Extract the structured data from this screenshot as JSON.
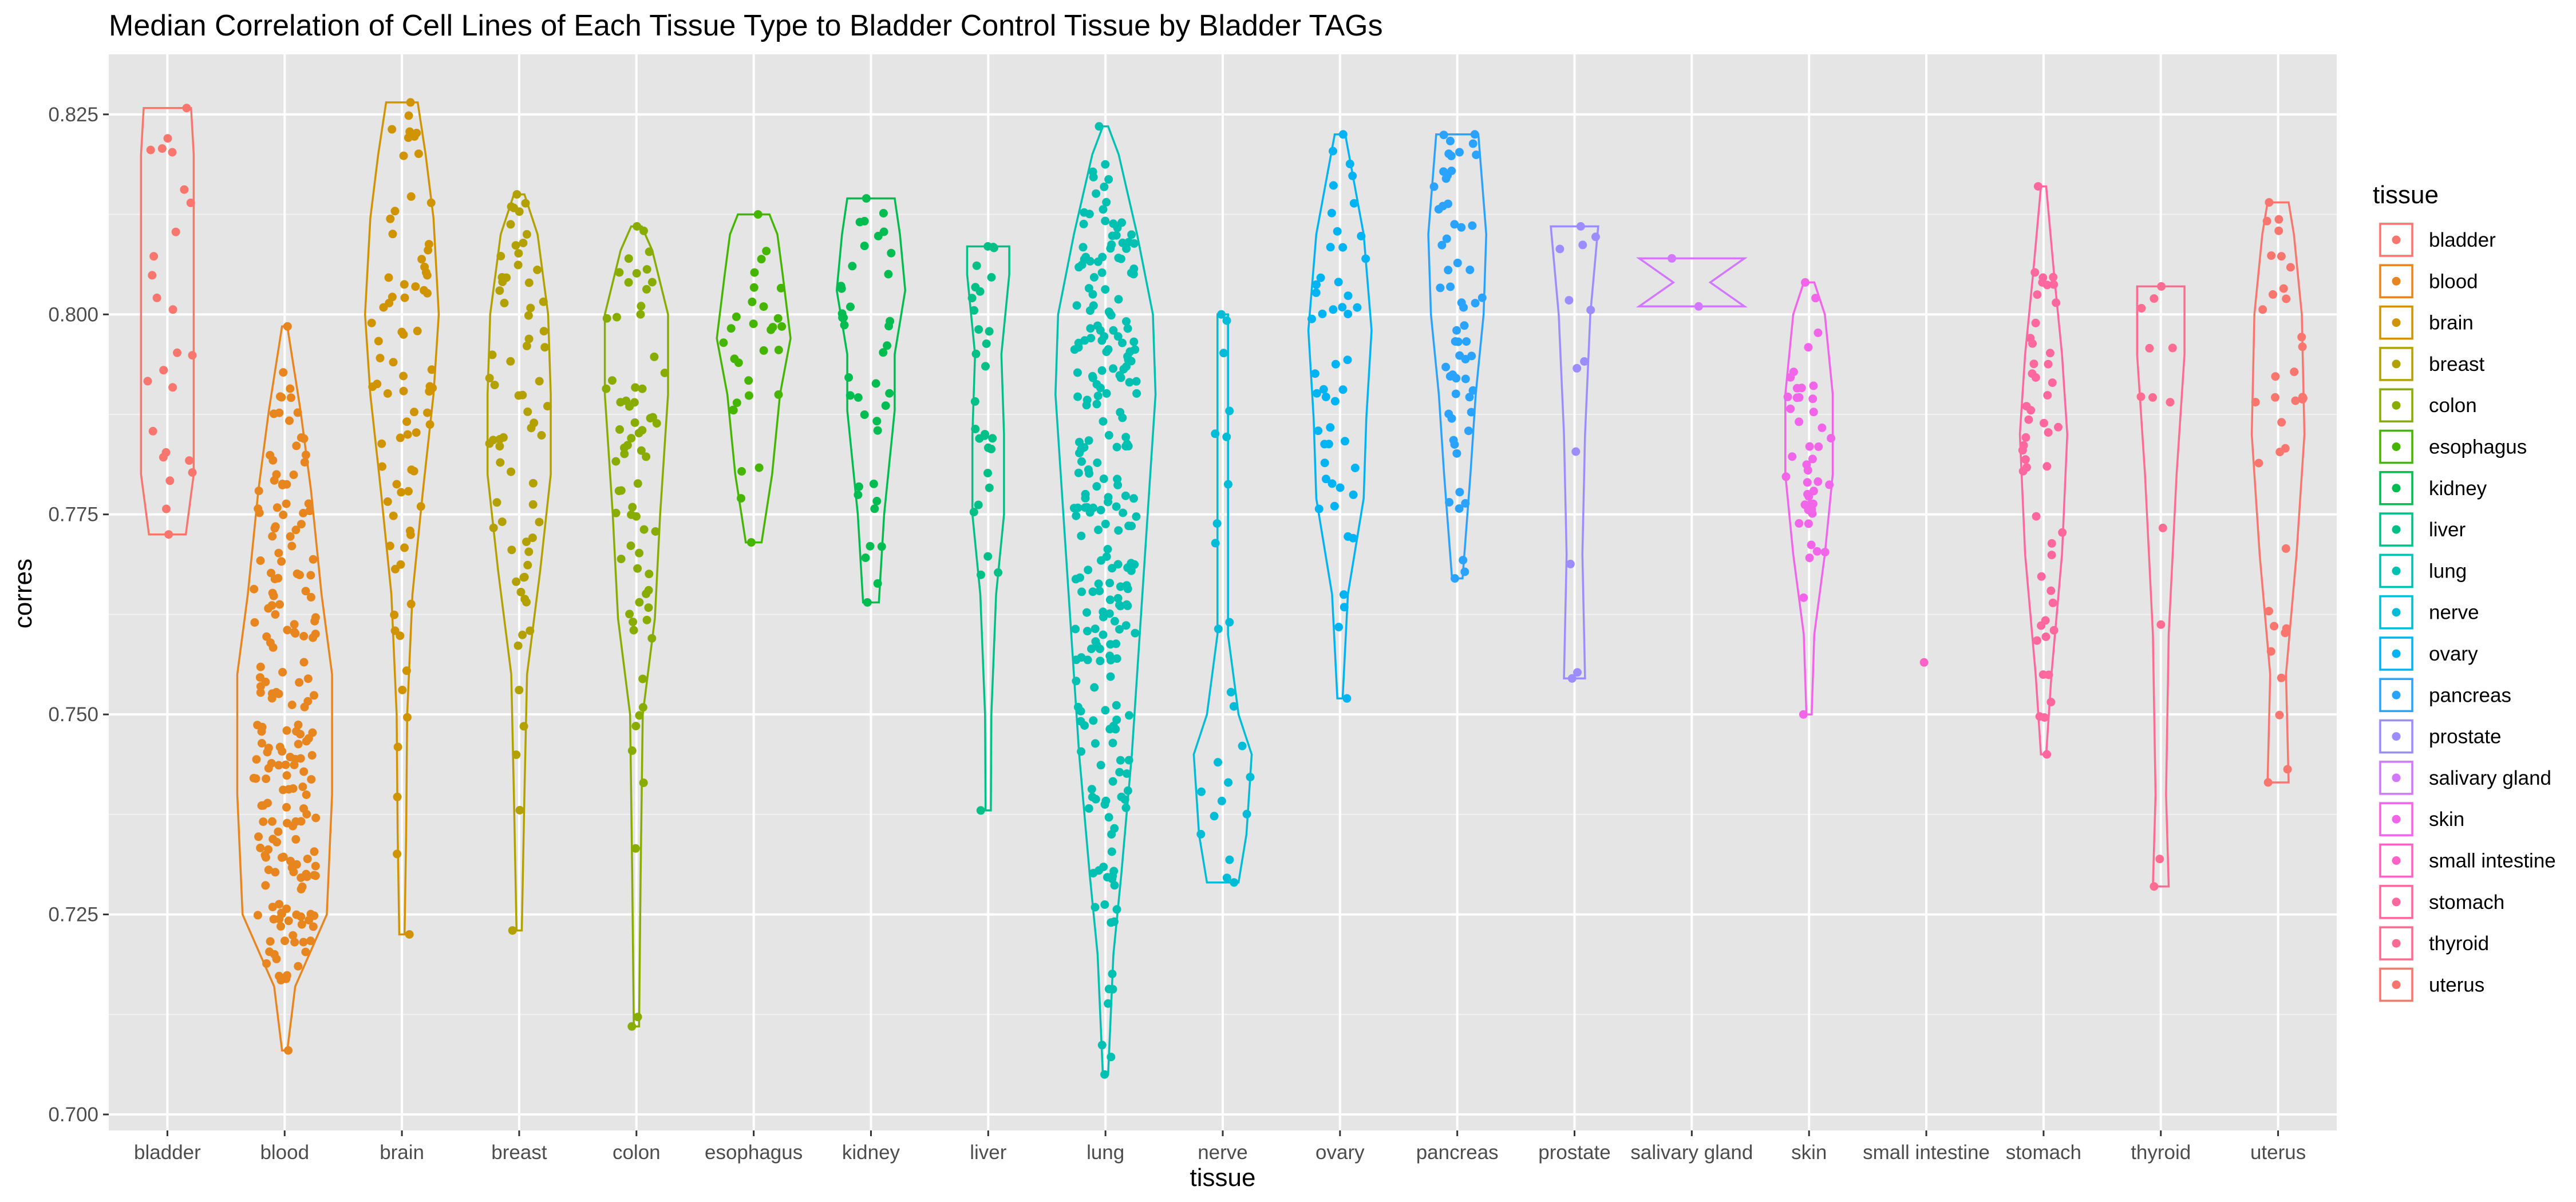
{
  "chart_data": {
    "type": "violin",
    "title": "Median Correlation of Cell Lines of Each Tissue Type to Bladder Control Tissue by Bladder TAGs",
    "xlabel": "tissue",
    "ylabel": "corres",
    "ylim": [
      0.698,
      0.8325
    ],
    "yticks": [
      0.7,
      0.725,
      0.75,
      0.775,
      0.8,
      0.825
    ],
    "ytick_labels": [
      "0.700",
      "0.725",
      "0.750",
      "0.775",
      "0.800",
      "0.825"
    ],
    "grid": true,
    "background": "#e5e5e5",
    "legend": {
      "title": "tissue",
      "position": "right"
    },
    "categories": [
      "bladder",
      "blood",
      "brain",
      "breast",
      "colon",
      "esophagus",
      "kidney",
      "liver",
      "lung",
      "nerve",
      "ovary",
      "pancreas",
      "prostate",
      "salivary gland",
      "skin",
      "small intestine",
      "stomach",
      "thyroid",
      "uterus"
    ],
    "colors": [
      "#f8766d",
      "#e7851e",
      "#d09400",
      "#b2a100",
      "#89ac00",
      "#45b500",
      "#00bc51",
      "#00c087",
      "#00c0b2",
      "#00bcd6",
      "#00b3f2",
      "#29a3ff",
      "#9c8dff",
      "#d277ff",
      "#f166e8",
      "#ff61c7",
      "#ff689e",
      "#ff6c91",
      "#f8766d"
    ],
    "series": [
      {
        "name": "bladder",
        "min": 0.7725,
        "max": 0.8258,
        "n": 25,
        "profile": [
          [
            0.7725,
            0.35
          ],
          [
            0.78,
            0.5
          ],
          [
            0.8,
            0.5
          ],
          [
            0.82,
            0.5
          ],
          [
            0.8258,
            0.45
          ]
        ]
      },
      {
        "name": "blood",
        "min": 0.708,
        "max": 0.7985,
        "n": 200,
        "profile": [
          [
            0.708,
            0.05
          ],
          [
            0.716,
            0.2
          ],
          [
            0.725,
            0.8
          ],
          [
            0.74,
            0.9
          ],
          [
            0.755,
            0.9
          ],
          [
            0.765,
            0.7
          ],
          [
            0.778,
            0.5
          ],
          [
            0.788,
            0.3
          ],
          [
            0.7985,
            0.05
          ]
        ]
      },
      {
        "name": "brain",
        "min": 0.7225,
        "max": 0.8265,
        "n": 80,
        "profile": [
          [
            0.7225,
            0.05
          ],
          [
            0.735,
            0.08
          ],
          [
            0.75,
            0.1
          ],
          [
            0.765,
            0.2
          ],
          [
            0.778,
            0.4
          ],
          [
            0.79,
            0.6
          ],
          [
            0.8,
            0.7
          ],
          [
            0.812,
            0.6
          ],
          [
            0.82,
            0.45
          ],
          [
            0.8265,
            0.3
          ]
        ]
      },
      {
        "name": "breast",
        "min": 0.723,
        "max": 0.815,
        "n": 70,
        "profile": [
          [
            0.723,
            0.05
          ],
          [
            0.74,
            0.1
          ],
          [
            0.755,
            0.15
          ],
          [
            0.768,
            0.4
          ],
          [
            0.78,
            0.6
          ],
          [
            0.79,
            0.6
          ],
          [
            0.8,
            0.55
          ],
          [
            0.81,
            0.35
          ],
          [
            0.815,
            0.1
          ]
        ]
      },
      {
        "name": "colon",
        "min": 0.711,
        "max": 0.811,
        "n": 70,
        "profile": [
          [
            0.711,
            0.05
          ],
          [
            0.73,
            0.08
          ],
          [
            0.75,
            0.12
          ],
          [
            0.762,
            0.35
          ],
          [
            0.775,
            0.45
          ],
          [
            0.79,
            0.6
          ],
          [
            0.8,
            0.6
          ],
          [
            0.808,
            0.3
          ],
          [
            0.811,
            0.1
          ]
        ]
      },
      {
        "name": "esophagus",
        "min": 0.7715,
        "max": 0.8125,
        "n": 30,
        "profile": [
          [
            0.7715,
            0.15
          ],
          [
            0.78,
            0.35
          ],
          [
            0.79,
            0.5
          ],
          [
            0.797,
            0.7
          ],
          [
            0.805,
            0.55
          ],
          [
            0.81,
            0.45
          ],
          [
            0.8125,
            0.3
          ]
        ]
      },
      {
        "name": "kidney",
        "min": 0.764,
        "max": 0.8145,
        "n": 40,
        "profile": [
          [
            0.764,
            0.15
          ],
          [
            0.775,
            0.25
          ],
          [
            0.788,
            0.45
          ],
          [
            0.795,
            0.45
          ],
          [
            0.803,
            0.65
          ],
          [
            0.81,
            0.55
          ],
          [
            0.8145,
            0.45
          ]
        ]
      },
      {
        "name": "liver",
        "min": 0.738,
        "max": 0.8085,
        "n": 30,
        "profile": [
          [
            0.738,
            0.05
          ],
          [
            0.75,
            0.06
          ],
          [
            0.765,
            0.15
          ],
          [
            0.775,
            0.3
          ],
          [
            0.785,
            0.3
          ],
          [
            0.795,
            0.25
          ],
          [
            0.805,
            0.4
          ],
          [
            0.8085,
            0.4
          ]
        ]
      },
      {
        "name": "lung",
        "min": 0.705,
        "max": 0.8235,
        "n": 250,
        "profile": [
          [
            0.705,
            0.05
          ],
          [
            0.72,
            0.15
          ],
          [
            0.73,
            0.3
          ],
          [
            0.745,
            0.5
          ],
          [
            0.76,
            0.65
          ],
          [
            0.775,
            0.8
          ],
          [
            0.79,
            0.95
          ],
          [
            0.8,
            0.9
          ],
          [
            0.81,
            0.6
          ],
          [
            0.82,
            0.25
          ],
          [
            0.8235,
            0.05
          ]
        ]
      },
      {
        "name": "nerve",
        "min": 0.729,
        "max": 0.8,
        "n": 25,
        "profile": [
          [
            0.729,
            0.3
          ],
          [
            0.735,
            0.45
          ],
          [
            0.745,
            0.55
          ],
          [
            0.75,
            0.3
          ],
          [
            0.76,
            0.1
          ],
          [
            0.775,
            0.1
          ],
          [
            0.79,
            0.1
          ],
          [
            0.8,
            0.1
          ]
        ]
      },
      {
        "name": "ovary",
        "min": 0.752,
        "max": 0.8225,
        "n": 50,
        "profile": [
          [
            0.752,
            0.05
          ],
          [
            0.765,
            0.15
          ],
          [
            0.777,
            0.45
          ],
          [
            0.787,
            0.5
          ],
          [
            0.798,
            0.6
          ],
          [
            0.81,
            0.45
          ],
          [
            0.8225,
            0.1
          ]
        ]
      },
      {
        "name": "pancreas",
        "min": 0.767,
        "max": 0.8225,
        "n": 60,
        "profile": [
          [
            0.767,
            0.1
          ],
          [
            0.78,
            0.25
          ],
          [
            0.79,
            0.35
          ],
          [
            0.8,
            0.5
          ],
          [
            0.81,
            0.55
          ],
          [
            0.8225,
            0.4
          ]
        ]
      },
      {
        "name": "prostate",
        "min": 0.7545,
        "max": 0.811,
        "n": 12,
        "profile": [
          [
            0.7545,
            0.2
          ],
          [
            0.77,
            0.15
          ],
          [
            0.785,
            0.2
          ],
          [
            0.8,
            0.3
          ],
          [
            0.811,
            0.45
          ]
        ]
      },
      {
        "name": "salivary gland",
        "min": 0.801,
        "max": 0.807,
        "n": 2,
        "profile": [
          [
            0.801,
            1.0
          ],
          [
            0.804,
            0.35
          ],
          [
            0.807,
            1.0
          ]
        ]
      },
      {
        "name": "skin",
        "min": 0.75,
        "max": 0.804,
        "n": 45,
        "profile": [
          [
            0.75,
            0.05
          ],
          [
            0.76,
            0.1
          ],
          [
            0.77,
            0.3
          ],
          [
            0.78,
            0.45
          ],
          [
            0.79,
            0.45
          ],
          [
            0.8,
            0.3
          ],
          [
            0.804,
            0.1
          ]
        ]
      },
      {
        "name": "small intestine",
        "min": 0.7565,
        "max": 0.7565,
        "n": 1,
        "profile": []
      },
      {
        "name": "stomach",
        "min": 0.745,
        "max": 0.816,
        "n": 50,
        "profile": [
          [
            0.745,
            0.05
          ],
          [
            0.755,
            0.15
          ],
          [
            0.77,
            0.35
          ],
          [
            0.785,
            0.45
          ],
          [
            0.795,
            0.35
          ],
          [
            0.805,
            0.2
          ],
          [
            0.816,
            0.05
          ]
        ]
      },
      {
        "name": "thyroid",
        "min": 0.7285,
        "max": 0.8035,
        "n": 12,
        "profile": [
          [
            0.7285,
            0.15
          ],
          [
            0.74,
            0.1
          ],
          [
            0.76,
            0.15
          ],
          [
            0.78,
            0.3
          ],
          [
            0.795,
            0.45
          ],
          [
            0.8035,
            0.45
          ]
        ]
      },
      {
        "name": "uterus",
        "min": 0.7415,
        "max": 0.814,
        "n": 35,
        "profile": [
          [
            0.7415,
            0.2
          ],
          [
            0.755,
            0.15
          ],
          [
            0.77,
            0.35
          ],
          [
            0.785,
            0.5
          ],
          [
            0.8,
            0.45
          ],
          [
            0.81,
            0.3
          ],
          [
            0.814,
            0.2
          ]
        ]
      }
    ]
  }
}
